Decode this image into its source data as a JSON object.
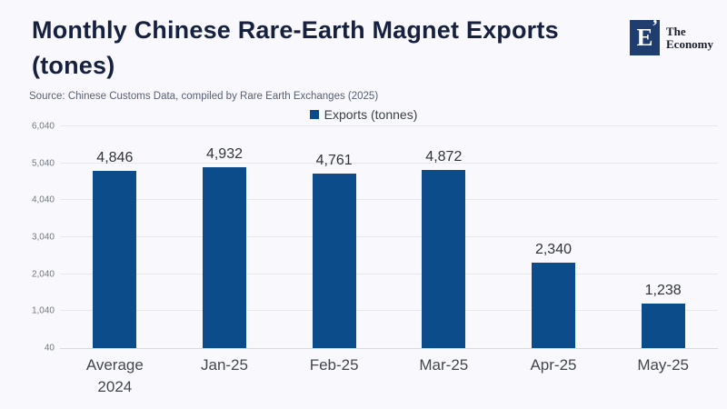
{
  "header": {
    "title_line1": "Monthly Chinese Rare-Earth Magnet Exports",
    "title_line2": "(tones)",
    "source": "Source: Chinese Customs Data, compiled by Rare Earth Exchanges (2025)",
    "logo": {
      "mark": "E",
      "accent": "’",
      "name": "The\nEconomy"
    }
  },
  "legend": {
    "label": "Exports (tonnes)"
  },
  "colors": {
    "bar": "#0d4c8a",
    "background": "#f9f9fd",
    "title": "#16213f",
    "gridline": "#e6e8ee",
    "logo_square": "#1f3d6e"
  },
  "chart_data": {
    "type": "bar",
    "title": "Monthly Chinese Rare-Earth Magnet Exports (tones)",
    "categories": [
      "Average 2024",
      "Jan-25",
      "Feb-25",
      "Mar-25",
      "Apr-25",
      "May-25"
    ],
    "values": [
      4846,
      4932,
      4761,
      4872,
      2340,
      1238
    ],
    "value_labels": [
      "4,846",
      "4,932",
      "4,761",
      "4,872",
      "2,340",
      "1,238"
    ],
    "series_name": "Exports (tonnes)",
    "xlabel": "",
    "ylabel": "",
    "ylim": [
      40,
      6040
    ],
    "yticks": [
      40,
      1040,
      2040,
      3040,
      4040,
      5040,
      6040
    ],
    "ytick_labels": [
      "40",
      "1,040",
      "2,040",
      "3,040",
      "4,040",
      "5,040",
      "6,040"
    ],
    "grid": true,
    "legend_position": "top",
    "bar_color": "#0d4c8a"
  }
}
